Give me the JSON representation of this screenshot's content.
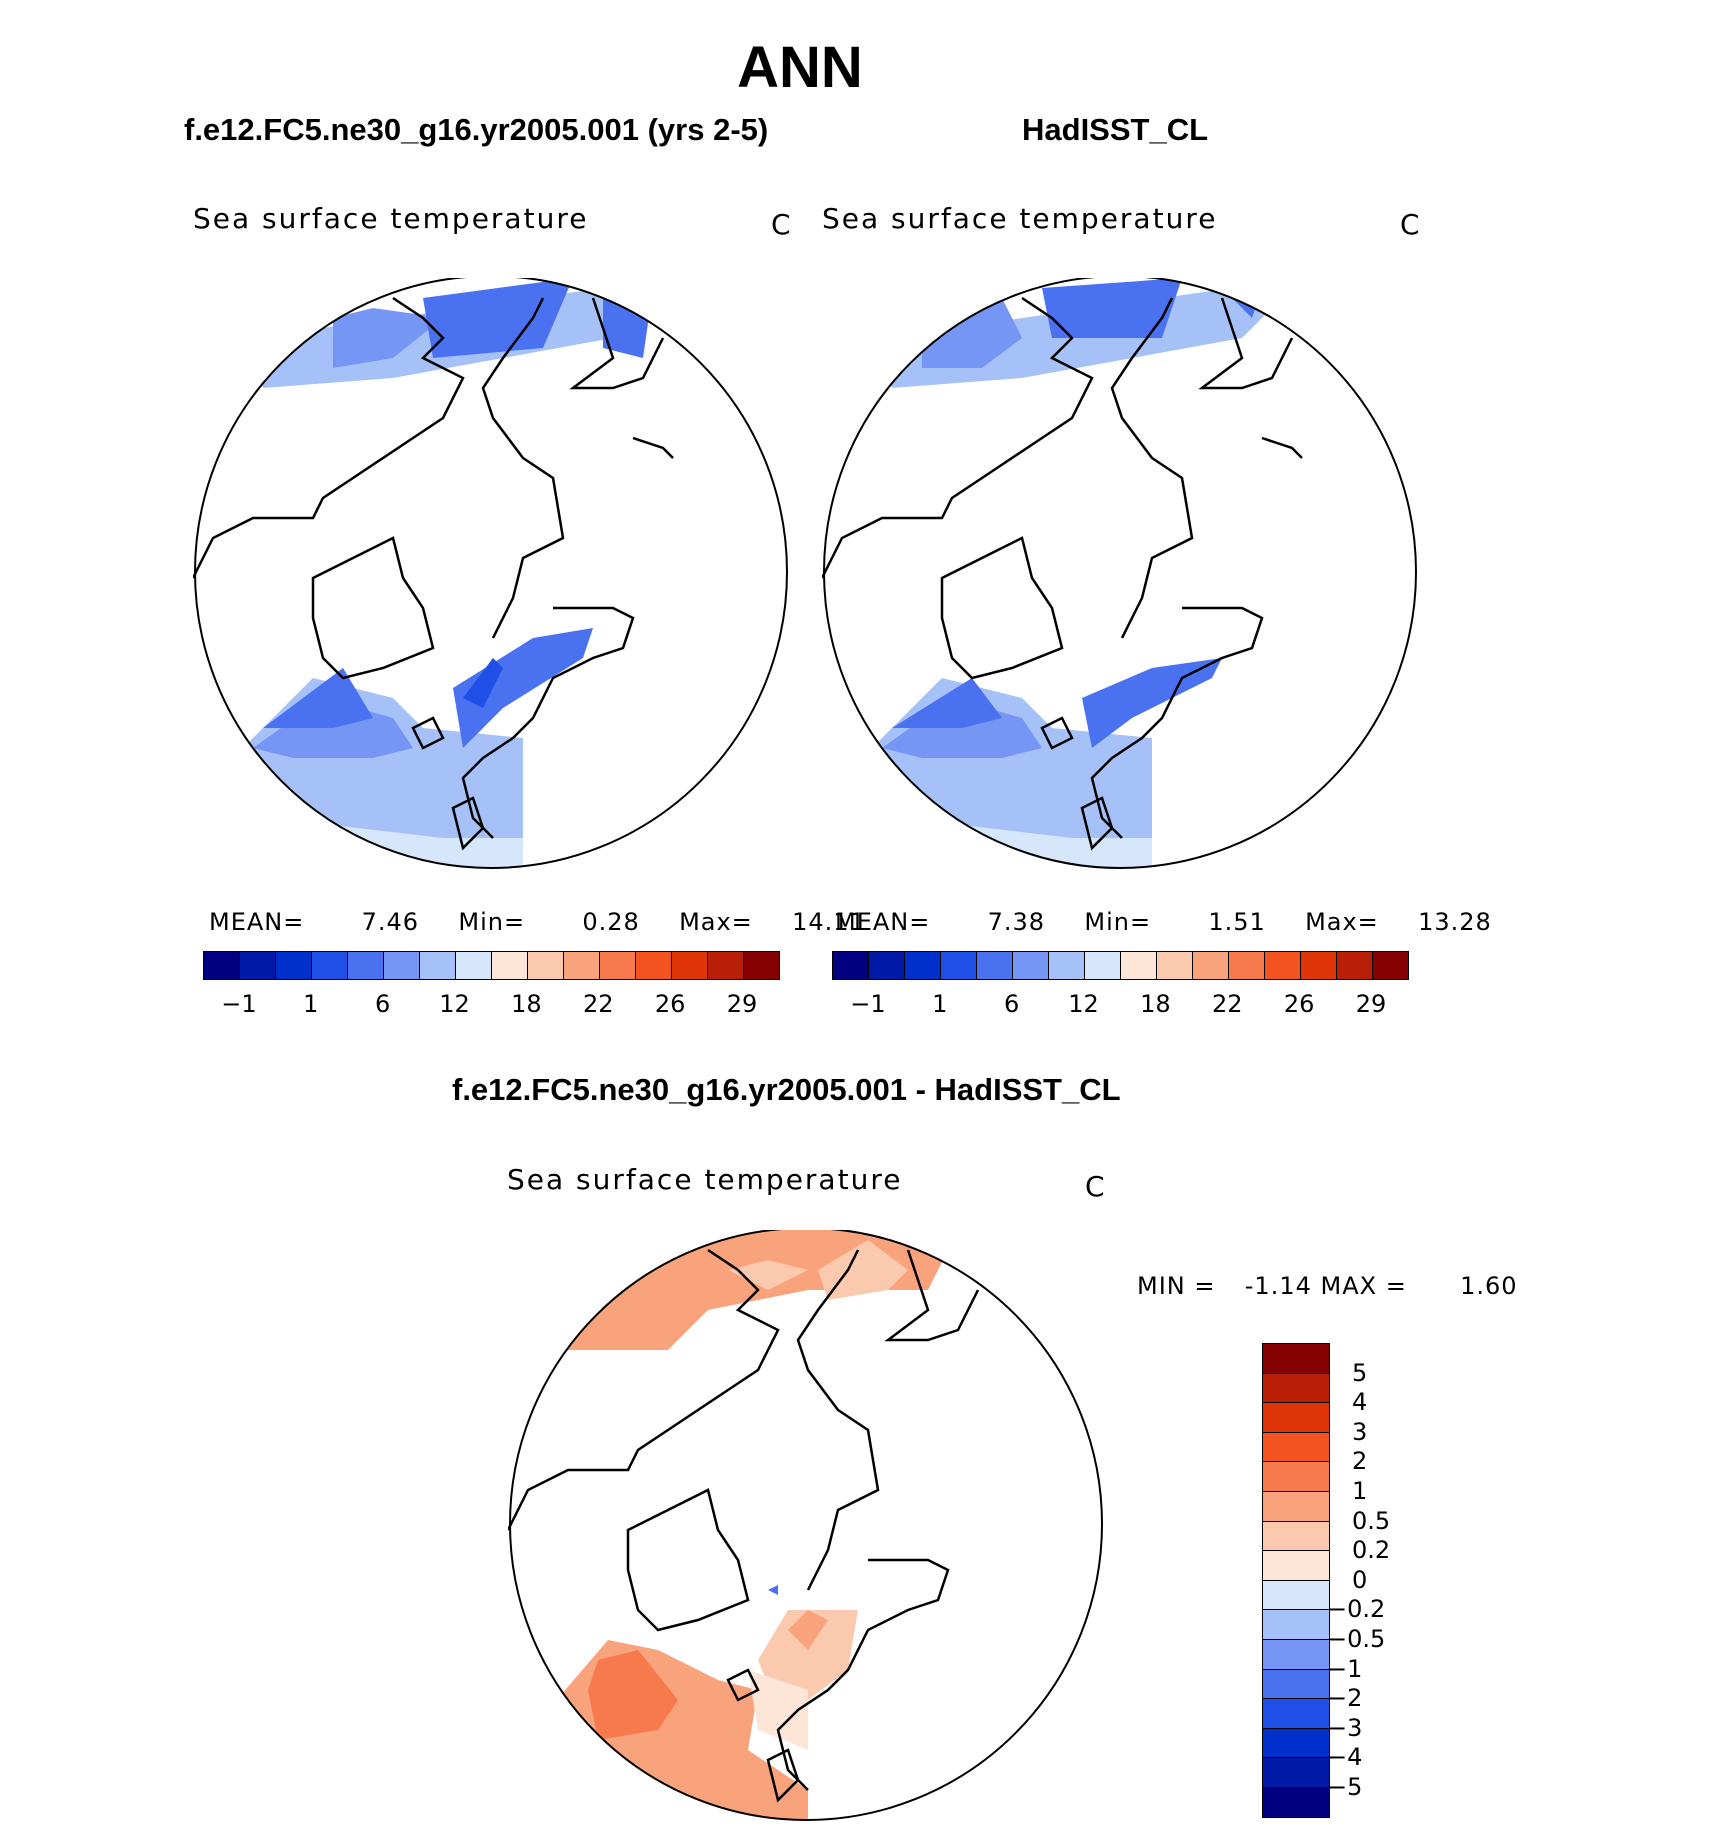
{
  "title": "ANN",
  "panels": [
    {
      "case_title": "f.e12.FC5.ne30_g16.yr2005.001 (yrs 2-5)",
      "variable": "Sea surface temperature",
      "units": "C",
      "mean_label": "MEAN=",
      "mean": "7.46",
      "min_label": "Min=",
      "min": "0.28",
      "max_label": "Max=",
      "max": "14.11"
    },
    {
      "case_title": "HadISST_CL",
      "variable": "Sea surface temperature",
      "units": "C",
      "mean_label": "MEAN=",
      "mean": "7.38",
      "min_label": "Min=",
      "min": "1.51",
      "max_label": "Max=",
      "max": "13.28"
    }
  ],
  "colorbar_sst": {
    "colors": [
      "#000080",
      "#0019a6",
      "#0030cc",
      "#1f4fe6",
      "#4a72f0",
      "#7596f5",
      "#a6c1f7",
      "#d6e6fb",
      "#fde6d8",
      "#fbc9ad",
      "#f9a37c",
      "#f77a4c",
      "#f4521f",
      "#e03409",
      "#b81f06",
      "#850000"
    ],
    "tick_labels": [
      "-1",
      "1",
      "6",
      "12",
      "18",
      "22",
      "26",
      "29"
    ]
  },
  "diff_panel": {
    "case_title": "f.e12.FC5.ne30_g16.yr2005.001 - HadISST_CL",
    "variable": "Sea surface temperature",
    "units": "C",
    "min_label": "MIN =",
    "min": "-1.14",
    "max_label": "MAX =",
    "max": "1.60"
  },
  "colorbar_diff": {
    "colors": [
      "#850000",
      "#b81f06",
      "#e03409",
      "#f4521f",
      "#f77a4c",
      "#f9a37c",
      "#fbc9ad",
      "#fde6d8",
      "#d6e6fb",
      "#a6c1f7",
      "#7596f5",
      "#4a72f0",
      "#1f4fe6",
      "#0030cc",
      "#0019a6",
      "#000080"
    ],
    "tick_labels": [
      "5",
      "4",
      "3",
      "2",
      "1",
      "0.5",
      "0.2",
      "0",
      "-0.2",
      "-0.5",
      "-1",
      "-2",
      "-3",
      "-4",
      "-5"
    ]
  }
}
